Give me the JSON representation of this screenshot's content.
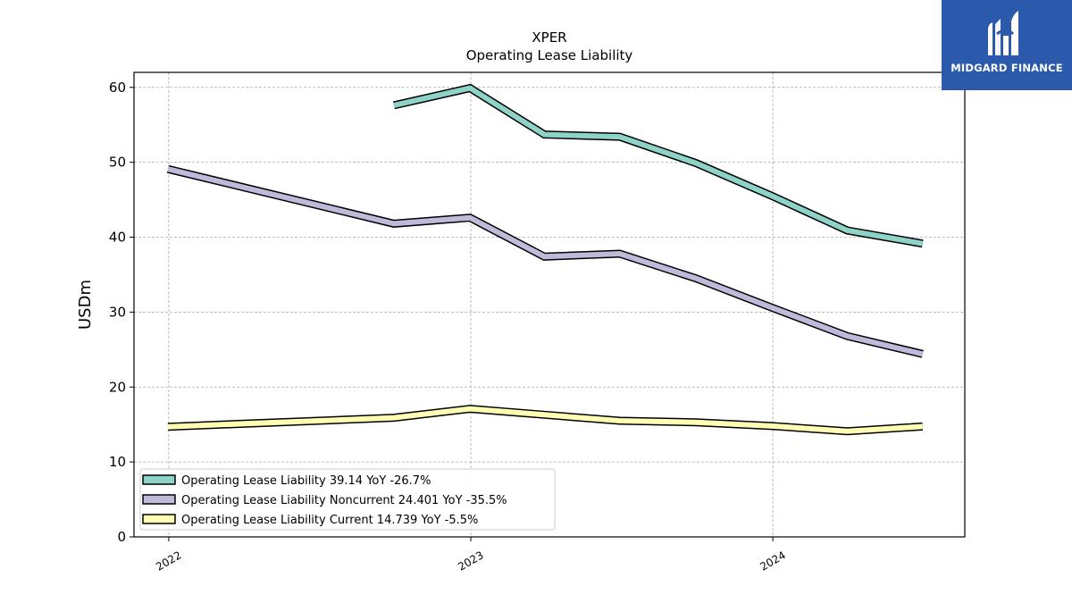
{
  "logo": {
    "text": "MIDGARD FINANCE",
    "icon": "midgard-finance-logo-icon"
  },
  "chart_data": {
    "type": "line",
    "title": "XPER",
    "subtitle": "Operating Lease Liability",
    "ylabel": "USDm",
    "xlabel": "",
    "ylim": [
      0,
      62
    ],
    "xlim": [
      "2021-11-20",
      "2024-08-20"
    ],
    "yticks": [
      0,
      10,
      20,
      30,
      40,
      50,
      60
    ],
    "xticks": [
      {
        "label": "2022",
        "date": "2022-01-01"
      },
      {
        "label": "2023",
        "date": "2023-01-01"
      },
      {
        "label": "2024",
        "date": "2024-01-01"
      }
    ],
    "grid": true,
    "legend_position": "lower-left",
    "series": [
      {
        "name": "Operating Lease Liability",
        "legend": "Operating Lease Liability  39.14 YoY -26.7%",
        "color": "#8dd3c7",
        "x": [
          "2022-09-30",
          "2022-12-31",
          "2023-03-31",
          "2023-06-30",
          "2023-09-30",
          "2023-12-31",
          "2024-03-31",
          "2024-06-30"
        ],
        "values": [
          57.6,
          59.9,
          53.7,
          53.4,
          49.9,
          45.5,
          40.9,
          39.14
        ]
      },
      {
        "name": "Operating Lease Liability Noncurrent",
        "legend": "Operating Lease Liability Noncurrent  24.401 YoY -35.5%",
        "color": "#bebada",
        "x": [
          "2021-12-31",
          "2022-09-30",
          "2022-12-31",
          "2023-03-31",
          "2023-06-30",
          "2023-09-30",
          "2023-12-31",
          "2024-03-31",
          "2024-06-30"
        ],
        "values": [
          49.1,
          41.8,
          42.6,
          37.4,
          37.8,
          34.5,
          30.6,
          26.8,
          24.401
        ]
      },
      {
        "name": "Operating Lease Liability Current",
        "legend": "Operating Lease Liability Current  14.739 YoY -5.5%",
        "color": "#ffffb3",
        "x": [
          "2021-12-31",
          "2022-09-30",
          "2022-12-31",
          "2023-03-31",
          "2023-06-30",
          "2023-09-30",
          "2023-12-31",
          "2024-03-31",
          "2024-06-30"
        ],
        "values": [
          14.7,
          15.9,
          17.1,
          16.3,
          15.5,
          15.3,
          14.8,
          14.1,
          14.739
        ]
      }
    ]
  }
}
